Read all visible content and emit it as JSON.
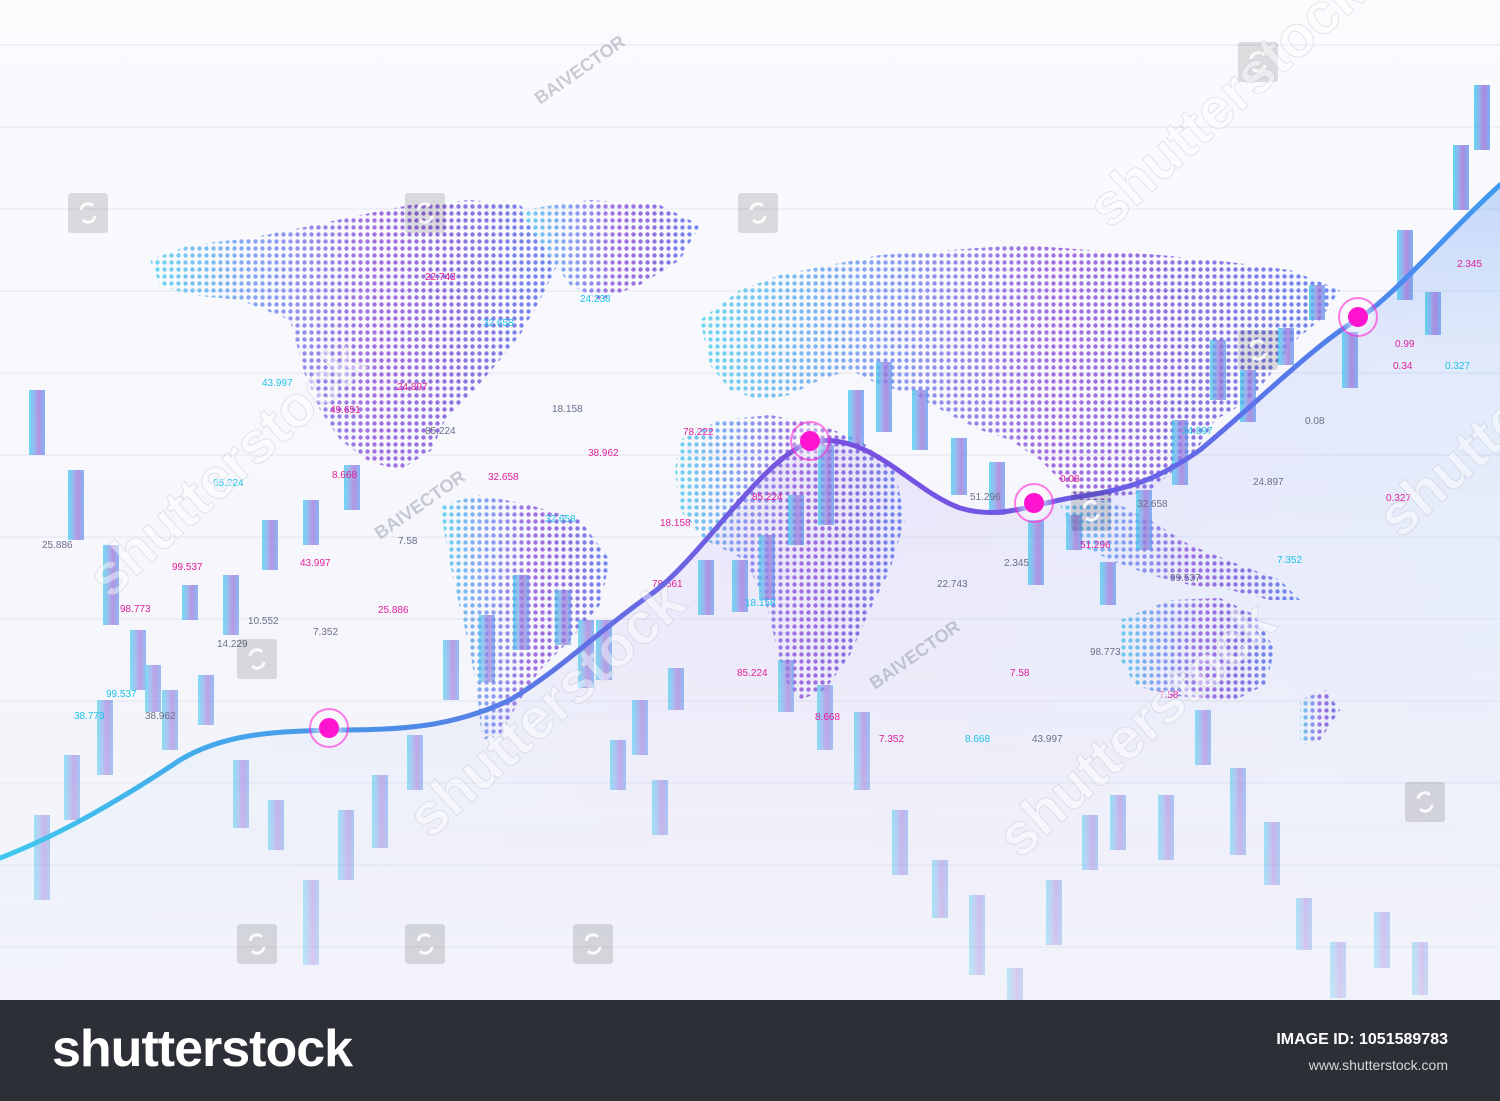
{
  "footer": {
    "brand": "shutterstock",
    "image_id": "IMAGE ID: 1051589783",
    "site_url": "www.shutterstock.com"
  },
  "watermark": {
    "diagonal_text": "shutterstock",
    "author_text": "BAIVECTOR"
  },
  "colors": {
    "background": "#f7f8fc",
    "footer_background": "#2d2f36",
    "line_start": "#3ec9ee",
    "line_mid": "#7a4ee0",
    "line_end": "#3f9bf0",
    "marker": "#ff14d0",
    "number_pink": "#e0209a",
    "number_cyan": "#1fc2e8",
    "number_grey": "#6c6f8a"
  },
  "scene": {
    "numbers": [
      {
        "text": "22.743",
        "tone": "pink"
      },
      {
        "text": "24.238",
        "tone": "cyan"
      },
      {
        "text": "32.658",
        "tone": "cyan"
      },
      {
        "text": "43.997",
        "tone": "cyan"
      },
      {
        "text": "24.897",
        "tone": "pink"
      },
      {
        "text": "49.651",
        "tone": "pink"
      },
      {
        "text": "18.158",
        "tone": "grey"
      },
      {
        "text": "85.224",
        "tone": "grey"
      },
      {
        "text": "78.222",
        "tone": "pink"
      },
      {
        "text": "38.962",
        "tone": "pink"
      },
      {
        "text": "8.668",
        "tone": "pink"
      },
      {
        "text": "32.658",
        "tone": "pink"
      },
      {
        "text": "85.224",
        "tone": "cyan"
      },
      {
        "text": "25.886",
        "tone": "grey"
      },
      {
        "text": "7.58",
        "tone": "grey"
      },
      {
        "text": "32.658",
        "tone": "cyan"
      },
      {
        "text": "18.158",
        "tone": "pink"
      },
      {
        "text": "99.537",
        "tone": "pink"
      },
      {
        "text": "43.997",
        "tone": "pink"
      },
      {
        "text": "98.773",
        "tone": "pink"
      },
      {
        "text": "10.552",
        "tone": "grey"
      },
      {
        "text": "25.886",
        "tone": "pink"
      },
      {
        "text": "14.229",
        "tone": "grey"
      },
      {
        "text": "7.352",
        "tone": "grey"
      },
      {
        "text": "99.537",
        "tone": "cyan"
      },
      {
        "text": "38.773",
        "tone": "cyan"
      },
      {
        "text": "38.962",
        "tone": "grey"
      },
      {
        "text": "78.561",
        "tone": "pink"
      },
      {
        "text": "85.224",
        "tone": "pink"
      },
      {
        "text": "18.158",
        "tone": "cyan"
      },
      {
        "text": "8.668",
        "tone": "pink"
      },
      {
        "text": "7.352",
        "tone": "pink"
      },
      {
        "text": "8.668",
        "tone": "cyan"
      },
      {
        "text": "43.997",
        "tone": "grey"
      },
      {
        "text": "22.743",
        "tone": "grey"
      },
      {
        "text": "2.345",
        "tone": "grey"
      },
      {
        "text": "7.58",
        "tone": "pink"
      },
      {
        "text": "51.296",
        "tone": "pink"
      },
      {
        "text": "98.773",
        "tone": "grey"
      },
      {
        "text": "99.537",
        "tone": "grey"
      },
      {
        "text": "7.58",
        "tone": "pink"
      },
      {
        "text": "24.897",
        "tone": "grey"
      },
      {
        "text": "0.327",
        "tone": "pink"
      },
      {
        "text": "7.352",
        "tone": "cyan"
      },
      {
        "text": "0.08",
        "tone": "grey"
      },
      {
        "text": "0.34",
        "tone": "pink"
      },
      {
        "text": "0.327",
        "tone": "cyan"
      },
      {
        "text": "2.345",
        "tone": "pink"
      },
      {
        "text": "0.99",
        "tone": "pink"
      },
      {
        "text": "0.08",
        "tone": "pink"
      },
      {
        "text": "24.897",
        "tone": "cyan"
      },
      {
        "text": "85.224",
        "tone": "pink"
      },
      {
        "text": "51.296",
        "tone": "grey"
      },
      {
        "text": "32.658",
        "tone": "grey"
      }
    ]
  }
}
